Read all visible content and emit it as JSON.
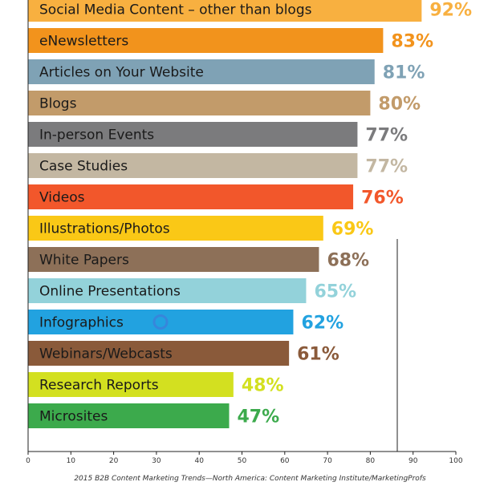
{
  "chart_data": {
    "type": "bar",
    "orientation": "horizontal",
    "categories": [
      "Social Media Content – other than blogs",
      "eNewsletters",
      "Articles on Your Website",
      "Blogs",
      "In-person Events",
      "Case Studies",
      "Videos",
      "Illustrations/Photos",
      "White Papers",
      "Online Presentations",
      "Infographics",
      "Webinars/Webcasts",
      "Research Reports",
      "Microsites"
    ],
    "values": [
      92,
      83,
      81,
      80,
      77,
      77,
      76,
      69,
      68,
      65,
      62,
      61,
      48,
      47
    ],
    "value_labels": [
      "92%",
      "83%",
      "81%",
      "80%",
      "77%",
      "77%",
      "76%",
      "69%",
      "68%",
      "65%",
      "62%",
      "61%",
      "48%",
      "47%"
    ],
    "colors": [
      "#f8b040",
      "#f2931c",
      "#7fa2b5",
      "#c29b6a",
      "#7b7b7d",
      "#c3b7a2",
      "#f2572b",
      "#fac816",
      "#8d7058",
      "#93d2da",
      "#22a2e0",
      "#8a5a3a",
      "#d3e020",
      "#3caa4c"
    ],
    "xlim": [
      0,
      100
    ],
    "x_ticks": [
      0,
      10,
      20,
      30,
      40,
      50,
      60,
      70,
      80,
      90,
      100
    ],
    "source": "2015 B2B Content Marketing Trends—North America: Content Marketing Institute/MarketingProfs"
  }
}
